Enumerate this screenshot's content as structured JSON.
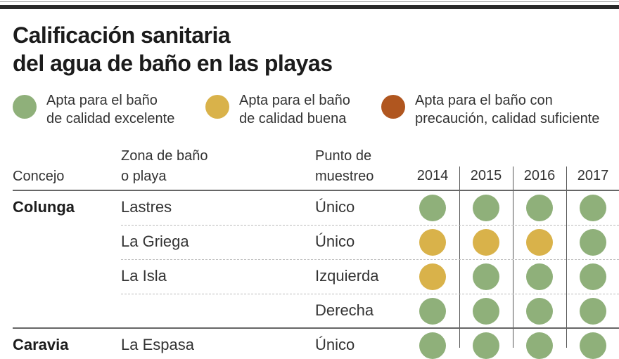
{
  "title": [
    "Calificación sanitaria",
    "del agua de baño en las playas"
  ],
  "legend": [
    {
      "line1": "Apta para el baño",
      "line2": "de calidad excelente",
      "color": "#8fb07a",
      "key": "E"
    },
    {
      "line1": "Apta para el baño",
      "line2": "de calidad buena",
      "color": "#d9b24a",
      "key": "B"
    },
    {
      "line1": "Apta para el baño con",
      "line2": "precaución, calidad suficiente",
      "color": "#b0561f",
      "key": "S"
    }
  ],
  "headers": {
    "concejo": "Concejo",
    "zona1": "Zona de baño",
    "zona2": "o playa",
    "punto1": "Punto de",
    "punto2": "muestreo",
    "years": [
      "2014",
      "2015",
      "2016",
      "2017"
    ]
  },
  "rows": [
    {
      "concejo": "Colunga",
      "zona": "Lastres",
      "punto": "Único",
      "ratings": [
        "E",
        "E",
        "E",
        "E"
      ]
    },
    {
      "concejo": "",
      "zona": "La Griega",
      "punto": "Único",
      "ratings": [
        "B",
        "B",
        "B",
        "E"
      ]
    },
    {
      "concejo": "",
      "zona": "La Isla",
      "punto": "Izquierda",
      "ratings": [
        "B",
        "E",
        "E",
        "E"
      ]
    },
    {
      "concejo": "",
      "zona": "",
      "punto": "Derecha",
      "ratings": [
        "E",
        "E",
        "E",
        "E"
      ]
    },
    {
      "concejo": "Caravia",
      "zona": "La Espasa",
      "punto": "Único",
      "ratings": [
        "E",
        "E",
        "E",
        "E"
      ]
    }
  ]
}
